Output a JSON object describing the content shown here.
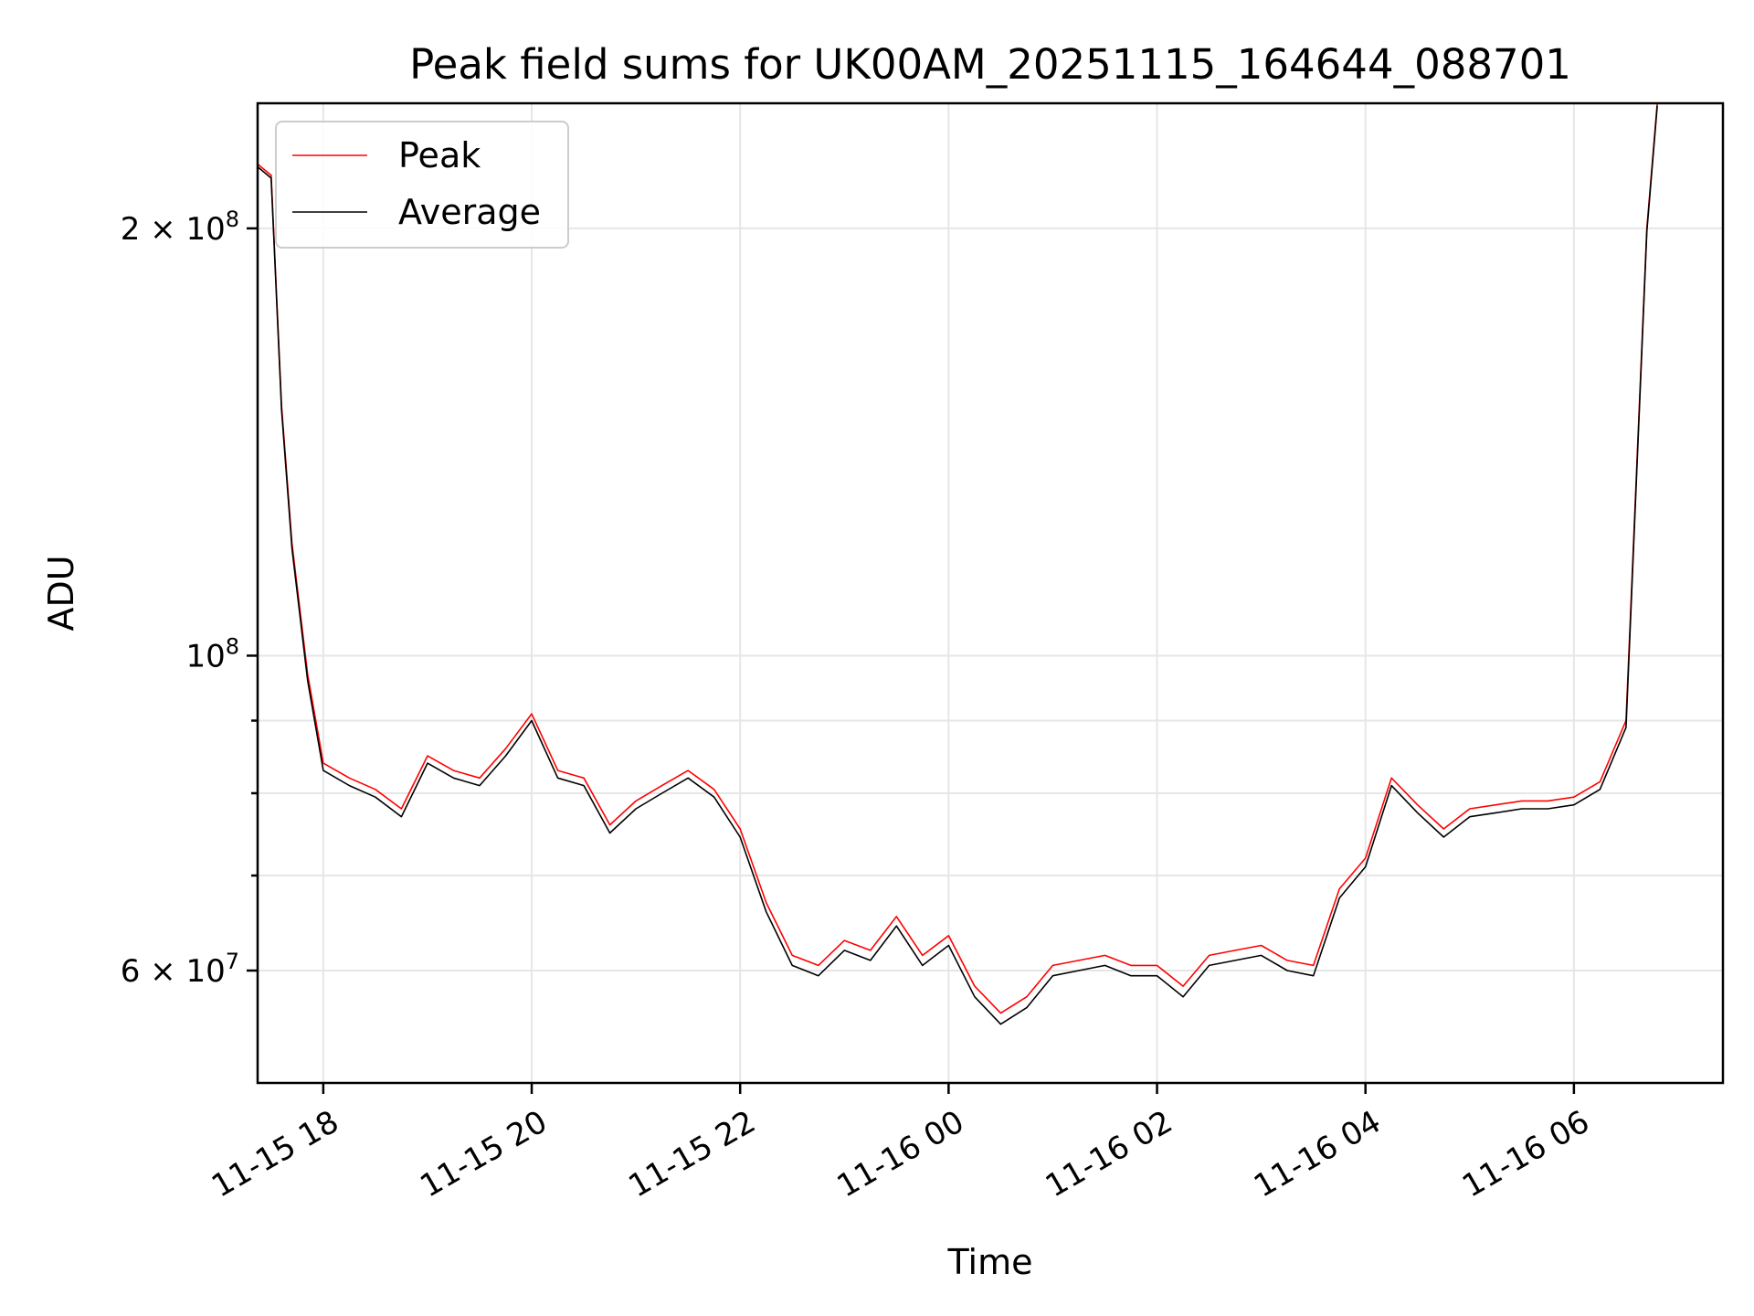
{
  "chart_data": {
    "type": "line",
    "title": "Peak field sums for UK00AM_20251115_164644_088701",
    "xlabel": "Time",
    "ylabel": "ADU",
    "yscale": "log",
    "grid": true,
    "legend_position": "upper left",
    "xlim": [
      -0.63,
      13.43
    ],
    "x_unit": "hours after 11-15 18:00",
    "ylim": [
      50000000,
      245000000
    ],
    "x_ticks": [
      {
        "label": "11-15 18",
        "value": 0
      },
      {
        "label": "11-15 20",
        "value": 2
      },
      {
        "label": "11-15 22",
        "value": 4
      },
      {
        "label": "11-16 00",
        "value": 6
      },
      {
        "label": "11-16 02",
        "value": 8
      },
      {
        "label": "11-16 04",
        "value": 10
      },
      {
        "label": "11-16 06",
        "value": 12
      }
    ],
    "y_major_ticks": [
      {
        "label": "2 × 10^8",
        "value": 200000000,
        "mant": "2 × 10",
        "exp": "8"
      },
      {
        "label": "10^8",
        "value": 100000000,
        "mant": "10",
        "exp": "8"
      },
      {
        "label": "6 × 10^7",
        "value": 60000000,
        "mant": "6 × 10",
        "exp": "7"
      }
    ],
    "y_minor_grid": [
      70000000,
      80000000,
      90000000
    ],
    "series": [
      {
        "name": "Peak",
        "color": "#ff0000",
        "x": [
          -0.63,
          -0.5,
          -0.4,
          -0.3,
          -0.15,
          0,
          0.25,
          0.5,
          0.75,
          1,
          1.25,
          1.5,
          1.75,
          2,
          2.25,
          2.5,
          2.75,
          3,
          3.25,
          3.5,
          3.75,
          4,
          4.25,
          4.5,
          4.75,
          5,
          5.25,
          5.5,
          5.75,
          6,
          6.25,
          6.5,
          6.75,
          7,
          7.25,
          7.5,
          7.75,
          8,
          8.25,
          8.5,
          8.75,
          9,
          9.25,
          9.5,
          9.75,
          10,
          10.25,
          10.5,
          10.75,
          11,
          11.25,
          11.5,
          11.75,
          12,
          12.25,
          12.5,
          12.7,
          12.8
        ],
        "values": [
          222000000,
          218000000,
          150000000,
          120000000,
          97000000,
          84000000,
          82000000,
          80500000,
          78000000,
          85000000,
          83000000,
          82000000,
          86000000,
          91000000,
          83000000,
          82000000,
          76000000,
          79000000,
          81000000,
          83000000,
          80500000,
          75500000,
          67000000,
          61500000,
          60500000,
          63000000,
          62000000,
          65500000,
          61500000,
          63500000,
          58500000,
          56000000,
          57500000,
          60500000,
          61000000,
          61500000,
          60500000,
          60500000,
          58500000,
          61500000,
          62000000,
          62500000,
          61000000,
          60500000,
          68500000,
          72000000,
          82000000,
          78500000,
          75500000,
          78000000,
          78500000,
          79000000,
          79000000,
          79500000,
          81500000,
          90000000,
          200000000,
          245000000
        ]
      },
      {
        "name": "Average",
        "color": "#000000",
        "x": [
          -0.63,
          -0.5,
          -0.4,
          -0.3,
          -0.15,
          0,
          0.25,
          0.5,
          0.75,
          1,
          1.25,
          1.5,
          1.75,
          2,
          2.25,
          2.5,
          2.75,
          3,
          3.25,
          3.5,
          3.75,
          4,
          4.25,
          4.5,
          4.75,
          5,
          5.25,
          5.5,
          5.75,
          6,
          6.25,
          6.5,
          6.75,
          7,
          7.25,
          7.5,
          7.75,
          8,
          8.25,
          8.5,
          8.75,
          9,
          9.25,
          9.5,
          9.75,
          10,
          10.25,
          10.5,
          10.75,
          11,
          11.25,
          11.5,
          11.75,
          12,
          12.25,
          12.5,
          12.7,
          12.8
        ],
        "values": [
          221000000,
          217000000,
          149000000,
          119000000,
          96000000,
          83000000,
          81000000,
          79500000,
          77000000,
          84000000,
          82000000,
          81000000,
          85000000,
          90000000,
          82000000,
          81000000,
          75000000,
          78000000,
          80000000,
          82000000,
          79500000,
          74500000,
          66000000,
          60500000,
          59500000,
          62000000,
          61000000,
          64500000,
          60500000,
          62500000,
          57500000,
          55000000,
          56500000,
          59500000,
          60000000,
          60500000,
          59500000,
          59500000,
          57500000,
          60500000,
          61000000,
          61500000,
          60000000,
          59500000,
          67500000,
          71000000,
          81000000,
          77500000,
          74500000,
          77000000,
          77500000,
          78000000,
          78000000,
          78500000,
          80500000,
          89000000,
          199000000,
          244000000
        ]
      }
    ]
  }
}
